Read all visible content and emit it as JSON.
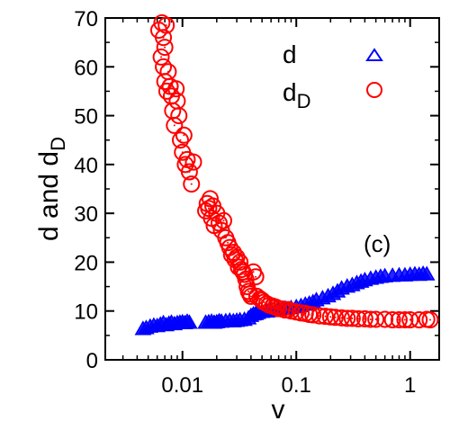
{
  "chart_data": {
    "type": "scatter",
    "title": "",
    "xlabel": "v",
    "ylabel": "d and d",
    "ylabel_sub": "D",
    "xscale": "log",
    "xlim": [
      0.0021,
      1.8
    ],
    "ylim": [
      0,
      70
    ],
    "x_ticks": [
      0.01,
      0.1,
      1
    ],
    "x_tick_labels": [
      "0.01",
      "0.1",
      "1"
    ],
    "y_ticks": [
      0,
      10,
      20,
      30,
      40,
      50,
      60,
      70
    ],
    "y_tick_labels": [
      "0",
      "10",
      "20",
      "30",
      "40",
      "50",
      "60",
      "70"
    ],
    "grid": false,
    "legend_position": "top-right",
    "annotation": "(c)",
    "colors": {
      "d": "#0000ff",
      "dD": "#ff0000"
    },
    "series": [
      {
        "name": "d",
        "sub": "",
        "marker": "triangle",
        "color": "#0000ff",
        "points": [
          [
            0.0045,
            6.3
          ],
          [
            0.0048,
            6.5
          ],
          [
            0.0052,
            6.8
          ],
          [
            0.0056,
            7.0
          ],
          [
            0.006,
            6.9
          ],
          [
            0.0064,
            7.2
          ],
          [
            0.0068,
            7.5
          ],
          [
            0.0072,
            7.1
          ],
          [
            0.0076,
            7.4
          ],
          [
            0.008,
            7.6
          ],
          [
            0.0085,
            7.3
          ],
          [
            0.009,
            7.5
          ],
          [
            0.0095,
            7.6
          ],
          [
            0.01,
            7.7
          ],
          [
            0.0105,
            7.5
          ],
          [
            0.011,
            7.8
          ],
          [
            0.0115,
            7.6
          ],
          [
            0.016,
            7.6
          ],
          [
            0.017,
            7.7
          ],
          [
            0.018,
            7.8
          ],
          [
            0.019,
            7.6
          ],
          [
            0.02,
            7.7
          ],
          [
            0.021,
            7.9
          ],
          [
            0.022,
            7.8
          ],
          [
            0.024,
            7.9
          ],
          [
            0.026,
            8.0
          ],
          [
            0.028,
            7.9
          ],
          [
            0.03,
            8.0
          ],
          [
            0.032,
            8.1
          ],
          [
            0.035,
            8.2
          ],
          [
            0.038,
            8.5
          ],
          [
            0.04,
            9.0
          ],
          [
            0.042,
            9.3
          ],
          [
            0.044,
            9.4
          ],
          [
            0.046,
            9.6
          ],
          [
            0.05,
            9.8
          ],
          [
            0.055,
            9.9
          ],
          [
            0.06,
            10.1
          ],
          [
            0.065,
            10.0
          ],
          [
            0.07,
            10.3
          ],
          [
            0.08,
            10.5
          ],
          [
            0.09,
            10.6
          ],
          [
            0.1,
            10.8
          ],
          [
            0.11,
            11.0
          ],
          [
            0.12,
            11.3
          ],
          [
            0.13,
            11.5
          ],
          [
            0.14,
            11.8
          ],
          [
            0.15,
            12.2
          ],
          [
            0.17,
            12.6
          ],
          [
            0.19,
            13.0
          ],
          [
            0.21,
            13.5
          ],
          [
            0.23,
            14.0
          ],
          [
            0.25,
            14.6
          ],
          [
            0.28,
            15.0
          ],
          [
            0.31,
            15.3
          ],
          [
            0.34,
            15.7
          ],
          [
            0.37,
            16.0
          ],
          [
            0.4,
            16.3
          ],
          [
            0.45,
            16.6
          ],
          [
            0.5,
            16.8
          ],
          [
            0.55,
            17.0
          ],
          [
            0.6,
            17.1
          ],
          [
            0.7,
            17.2
          ],
          [
            0.8,
            17.3
          ],
          [
            0.9,
            17.3
          ],
          [
            1.0,
            17.4
          ],
          [
            1.1,
            17.5
          ],
          [
            1.2,
            17.4
          ],
          [
            1.3,
            17.6
          ],
          [
            1.4,
            17.5
          ]
        ]
      },
      {
        "name": "d",
        "sub": "D",
        "marker": "circle",
        "color": "#ff0000",
        "points": [
          [
            0.0062,
            67.5
          ],
          [
            0.0066,
            69.0
          ],
          [
            0.0068,
            66.0
          ],
          [
            0.007,
            64.0
          ],
          [
            0.0072,
            68.5
          ],
          [
            0.0065,
            62.0
          ],
          [
            0.0068,
            60.0
          ],
          [
            0.007,
            57.0
          ],
          [
            0.0073,
            55.0
          ],
          [
            0.0075,
            59.0
          ],
          [
            0.0078,
            56.0
          ],
          [
            0.008,
            54.0
          ],
          [
            0.0082,
            51.0
          ],
          [
            0.0085,
            48.0
          ],
          [
            0.0088,
            55.5
          ],
          [
            0.009,
            53.0
          ],
          [
            0.0093,
            50.0
          ],
          [
            0.0096,
            45.0
          ],
          [
            0.01,
            42.5
          ],
          [
            0.0103,
            46.0
          ],
          [
            0.0106,
            40.0
          ],
          [
            0.011,
            41.0
          ],
          [
            0.0115,
            38.5
          ],
          [
            0.012,
            36.0
          ],
          [
            0.0125,
            40.5
          ],
          [
            0.016,
            30.5
          ],
          [
            0.0165,
            32.0
          ],
          [
            0.017,
            31.0
          ],
          [
            0.0175,
            33.0
          ],
          [
            0.018,
            29.0
          ],
          [
            0.0185,
            31.5
          ],
          [
            0.019,
            27.5
          ],
          [
            0.02,
            30.0
          ],
          [
            0.021,
            28.0
          ],
          [
            0.022,
            26.5
          ],
          [
            0.023,
            28.5
          ],
          [
            0.024,
            25.0
          ],
          [
            0.025,
            24.0
          ],
          [
            0.026,
            23.0
          ],
          [
            0.027,
            21.5
          ],
          [
            0.028,
            22.0
          ],
          [
            0.029,
            20.5
          ],
          [
            0.03,
            21.0
          ],
          [
            0.031,
            19.0
          ],
          [
            0.032,
            20.0
          ],
          [
            0.033,
            18.5
          ],
          [
            0.034,
            18.0
          ],
          [
            0.035,
            17.5
          ],
          [
            0.036,
            16.5
          ],
          [
            0.037,
            15.0
          ],
          [
            0.038,
            14.0
          ],
          [
            0.039,
            13.5
          ],
          [
            0.04,
            13.0
          ],
          [
            0.042,
            18.0
          ],
          [
            0.044,
            17.0
          ],
          [
            0.045,
            13.0
          ],
          [
            0.048,
            12.5
          ],
          [
            0.05,
            12.2
          ],
          [
            0.052,
            11.8
          ],
          [
            0.055,
            11.5
          ],
          [
            0.058,
            11.2
          ],
          [
            0.062,
            11.0
          ],
          [
            0.066,
            10.8
          ],
          [
            0.07,
            10.5
          ],
          [
            0.075,
            10.4
          ],
          [
            0.08,
            10.2
          ],
          [
            0.085,
            10.3
          ],
          [
            0.09,
            10.0
          ],
          [
            0.1,
            9.8
          ],
          [
            0.11,
            9.6
          ],
          [
            0.12,
            9.5
          ],
          [
            0.13,
            9.3
          ],
          [
            0.14,
            9.2
          ],
          [
            0.16,
            9.0
          ],
          [
            0.18,
            8.9
          ],
          [
            0.2,
            8.8
          ],
          [
            0.22,
            8.7
          ],
          [
            0.25,
            8.6
          ],
          [
            0.28,
            8.5
          ],
          [
            0.31,
            8.5
          ],
          [
            0.35,
            8.4
          ],
          [
            0.4,
            8.4
          ],
          [
            0.45,
            8.3
          ],
          [
            0.5,
            8.3
          ],
          [
            0.6,
            8.3
          ],
          [
            0.7,
            8.2
          ],
          [
            0.8,
            8.2
          ],
          [
            0.9,
            8.2
          ],
          [
            1.0,
            8.2
          ],
          [
            1.2,
            8.2
          ],
          [
            1.4,
            8.3
          ],
          [
            1.5,
            8.2
          ]
        ]
      }
    ]
  }
}
